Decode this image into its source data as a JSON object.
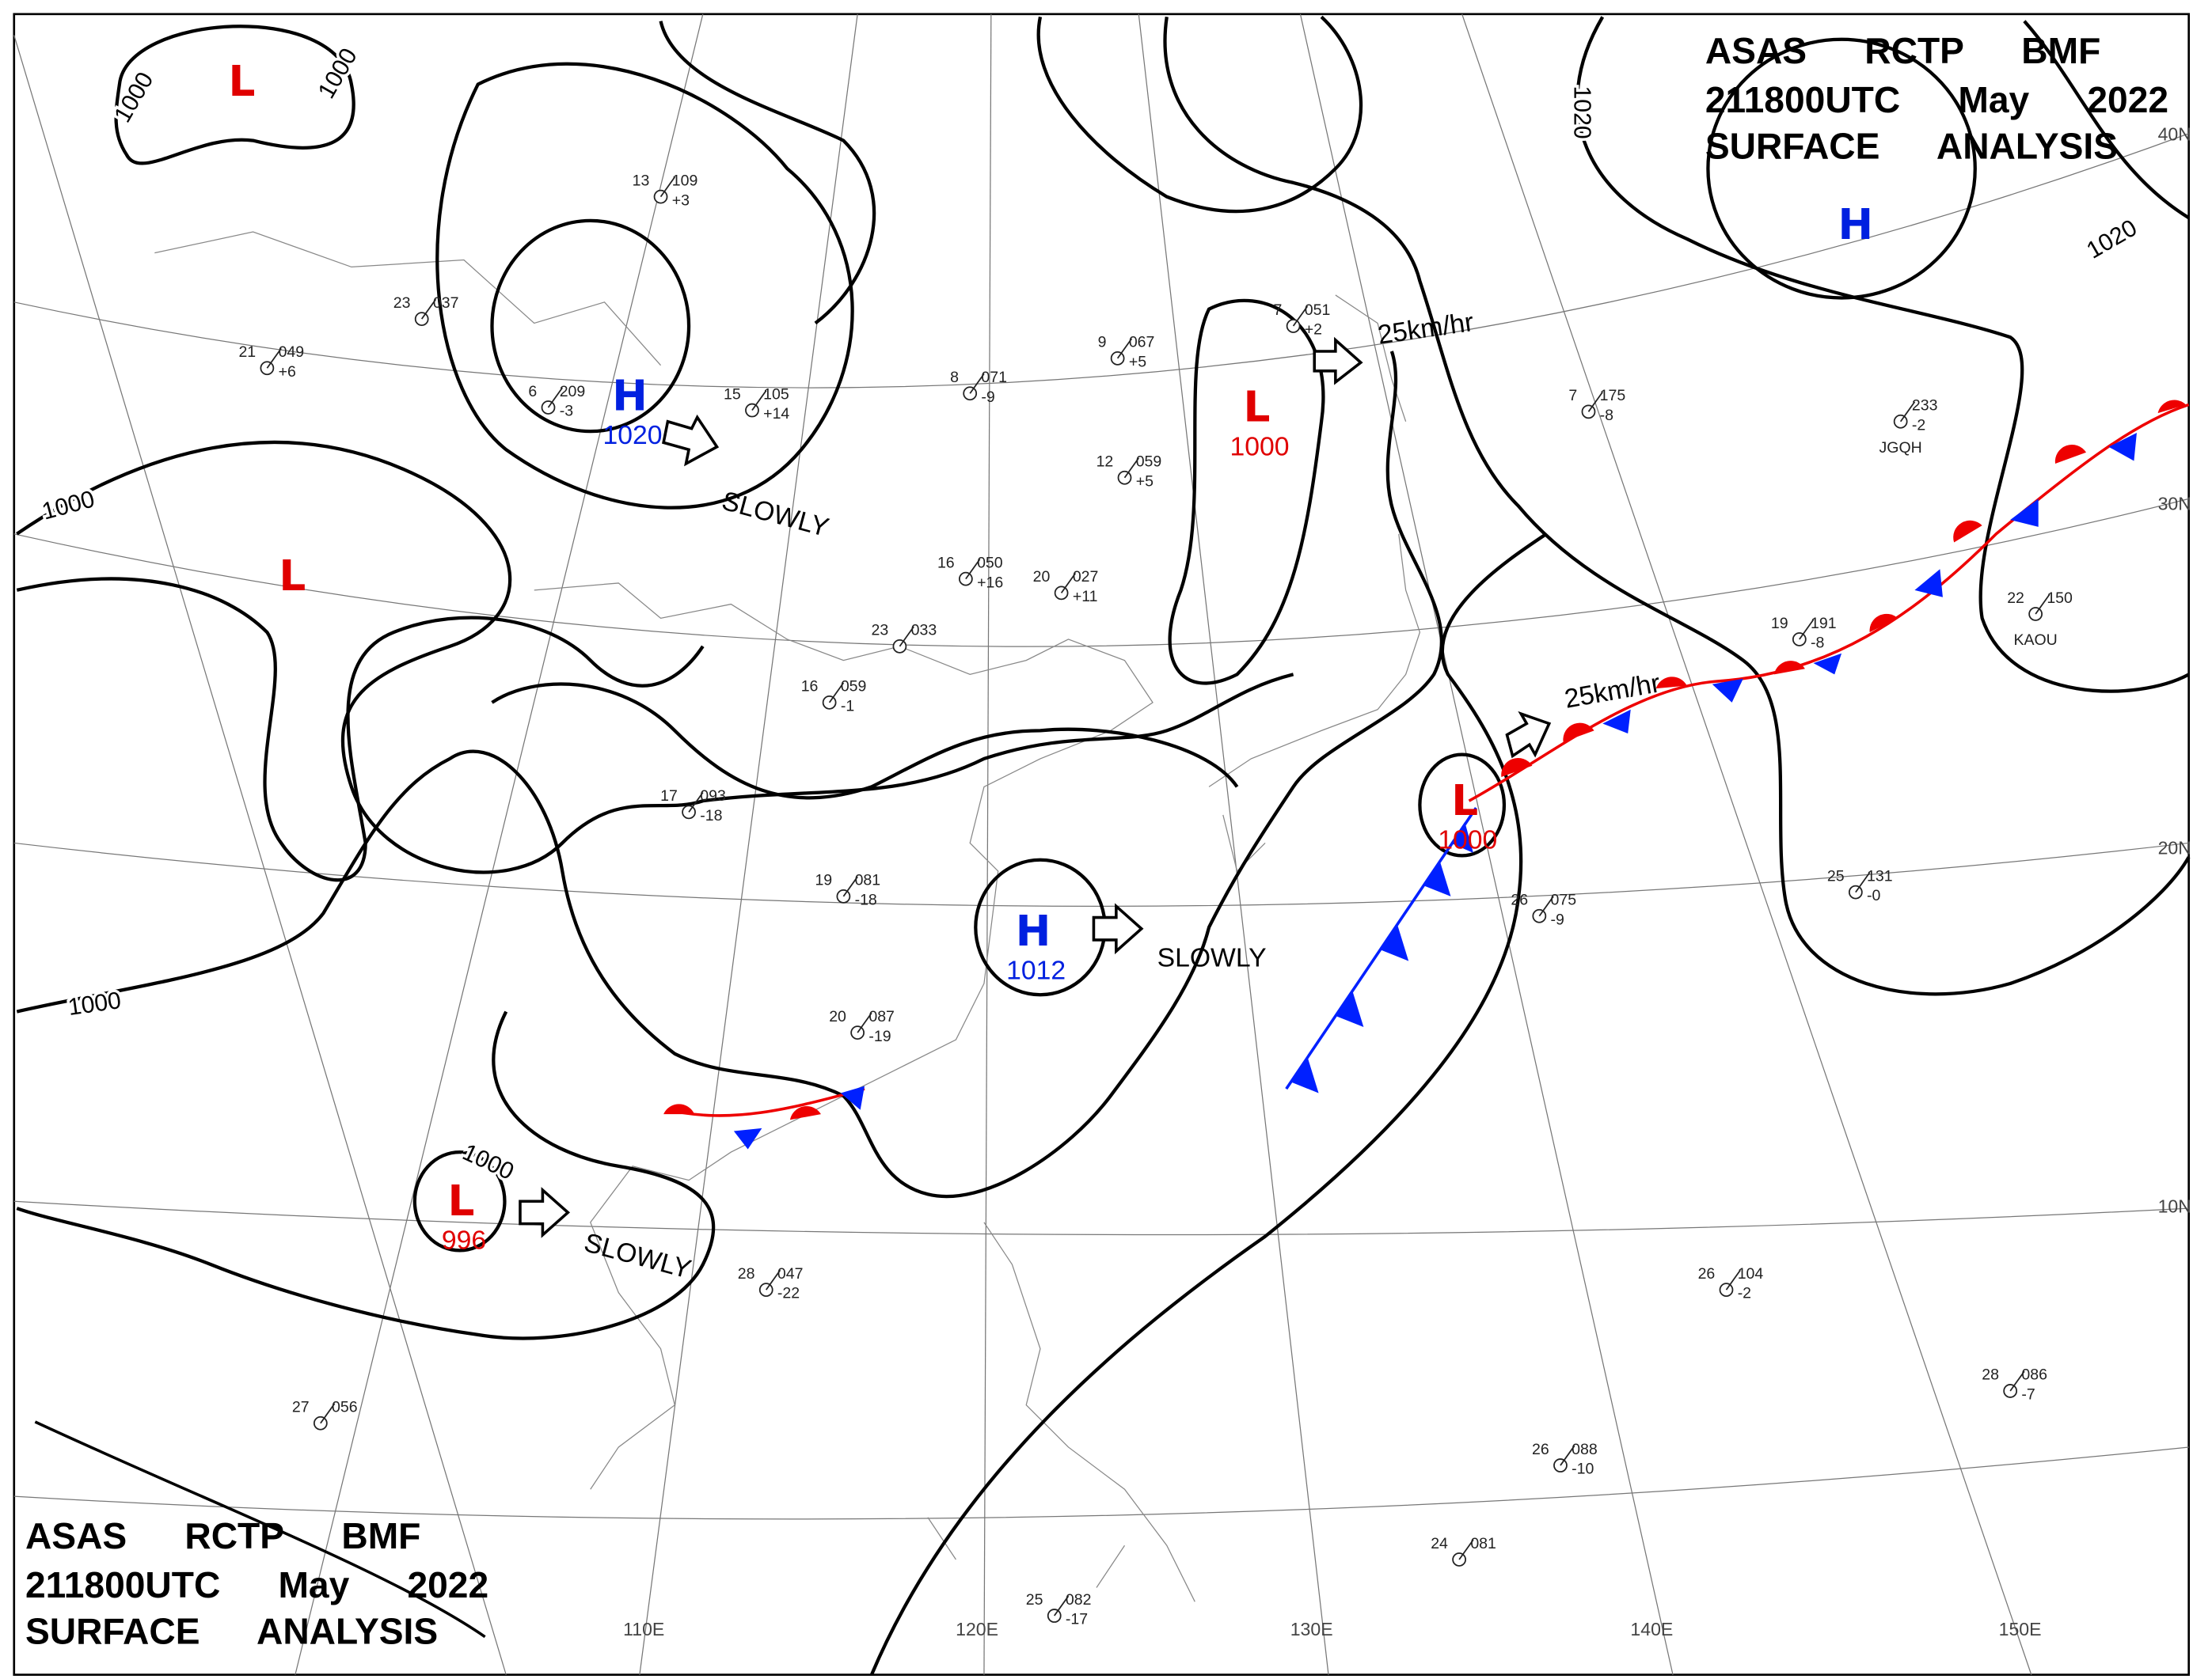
{
  "header_top": [
    "ASAS RCTP BMF",
    "211800UTC May 2022",
    "SURFACE ANALYSIS"
  ],
  "header_bottom": [
    "ASAS RCTP BMF",
    "211800UTC May 2022",
    "SURFACE ANALYSIS"
  ],
  "pressure_systems": [
    {
      "symbol": "L",
      "color": "red"
    },
    {
      "symbol": "H",
      "color": "blue",
      "pressure": 1020
    },
    {
      "symbol": "L",
      "color": "red"
    },
    {
      "symbol": "L",
      "color": "red",
      "pressure": 1000
    },
    {
      "symbol": "H",
      "color": "blue",
      "pressure": 1012
    },
    {
      "symbol": "L",
      "color": "red",
      "pressure": 996
    },
    {
      "symbol": "L",
      "color": "red",
      "pressure": 1000
    },
    {
      "symbol": "H",
      "color": "blue"
    }
  ],
  "isobar_labels": [
    1000,
    1000,
    1000,
    1000,
    1000,
    1020,
    1020
  ],
  "motions": [
    "SLOWLY",
    "25km/hr",
    "SLOWLY",
    "SLOWLY",
    "25km/hr"
  ],
  "latitude_labels": [
    "40N",
    "30N",
    "20N",
    "10N"
  ],
  "longitude_labels": [
    "110E",
    "120E",
    "130E",
    "140E",
    "150E"
  ],
  "stations": [
    {
      "temp": "13",
      "pressure": "109",
      "tendency": "+3"
    },
    {
      "temp": "23",
      "pressure": "037"
    },
    {
      "temp": "21",
      "pressure": "049",
      "tendency": "+6"
    },
    {
      "temp": "6",
      "pressure": "209",
      "tendency": "-3"
    },
    {
      "temp": "15",
      "pressure": "105",
      "tendency": "+14"
    },
    {
      "temp": "8",
      "pressure": "071",
      "tendency": "-9"
    },
    {
      "temp": "9",
      "pressure": "067",
      "tendency": "+5"
    },
    {
      "temp": "12",
      "pressure": "059",
      "tendency": "+5"
    },
    {
      "temp": "7",
      "pressure": "051",
      "tendency": "+2"
    },
    {
      "temp": "16",
      "pressure": "050",
      "tendency": "+16"
    },
    {
      "temp": "20",
      "pressure": "027",
      "tendency": "+11"
    },
    {
      "temp": "23",
      "pressure": "033"
    },
    {
      "temp": "16",
      "pressure": "059",
      "tendency": "-1"
    },
    {
      "temp": "17",
      "pressure": "093",
      "tendency": "-18"
    },
    {
      "temp": "19",
      "pressure": "081",
      "tendency": "-18"
    },
    {
      "temp": "20",
      "pressure": "087",
      "tendency": "-19"
    },
    {
      "temp": "28",
      "pressure": "047",
      "tendency": "-22"
    },
    {
      "temp": "7",
      "pressure": "175",
      "tendency": "-8"
    },
    {
      "pressure": "233",
      "tendency": "-2",
      "id": "JGQH"
    },
    {
      "temp": "19",
      "pressure": "191",
      "tendency": "-8"
    },
    {
      "temp": "22",
      "pressure": "150",
      "id": "KAOU"
    },
    {
      "temp": "25",
      "pressure": "131",
      "tendency": "-0"
    },
    {
      "temp": "26",
      "pressure": "075",
      "tendency": "-9"
    },
    {
      "temp": "26",
      "pressure": "104",
      "tendency": "-2"
    },
    {
      "temp": "28",
      "pressure": "086",
      "tendency": "-7"
    },
    {
      "temp": "24",
      "pressure": "081"
    },
    {
      "temp": "26",
      "pressure": "088",
      "tendency": "-10"
    },
    {
      "temp": "25",
      "pressure": "082",
      "tendency": "-17"
    },
    {
      "temp": "27",
      "pressure": "056"
    }
  ]
}
